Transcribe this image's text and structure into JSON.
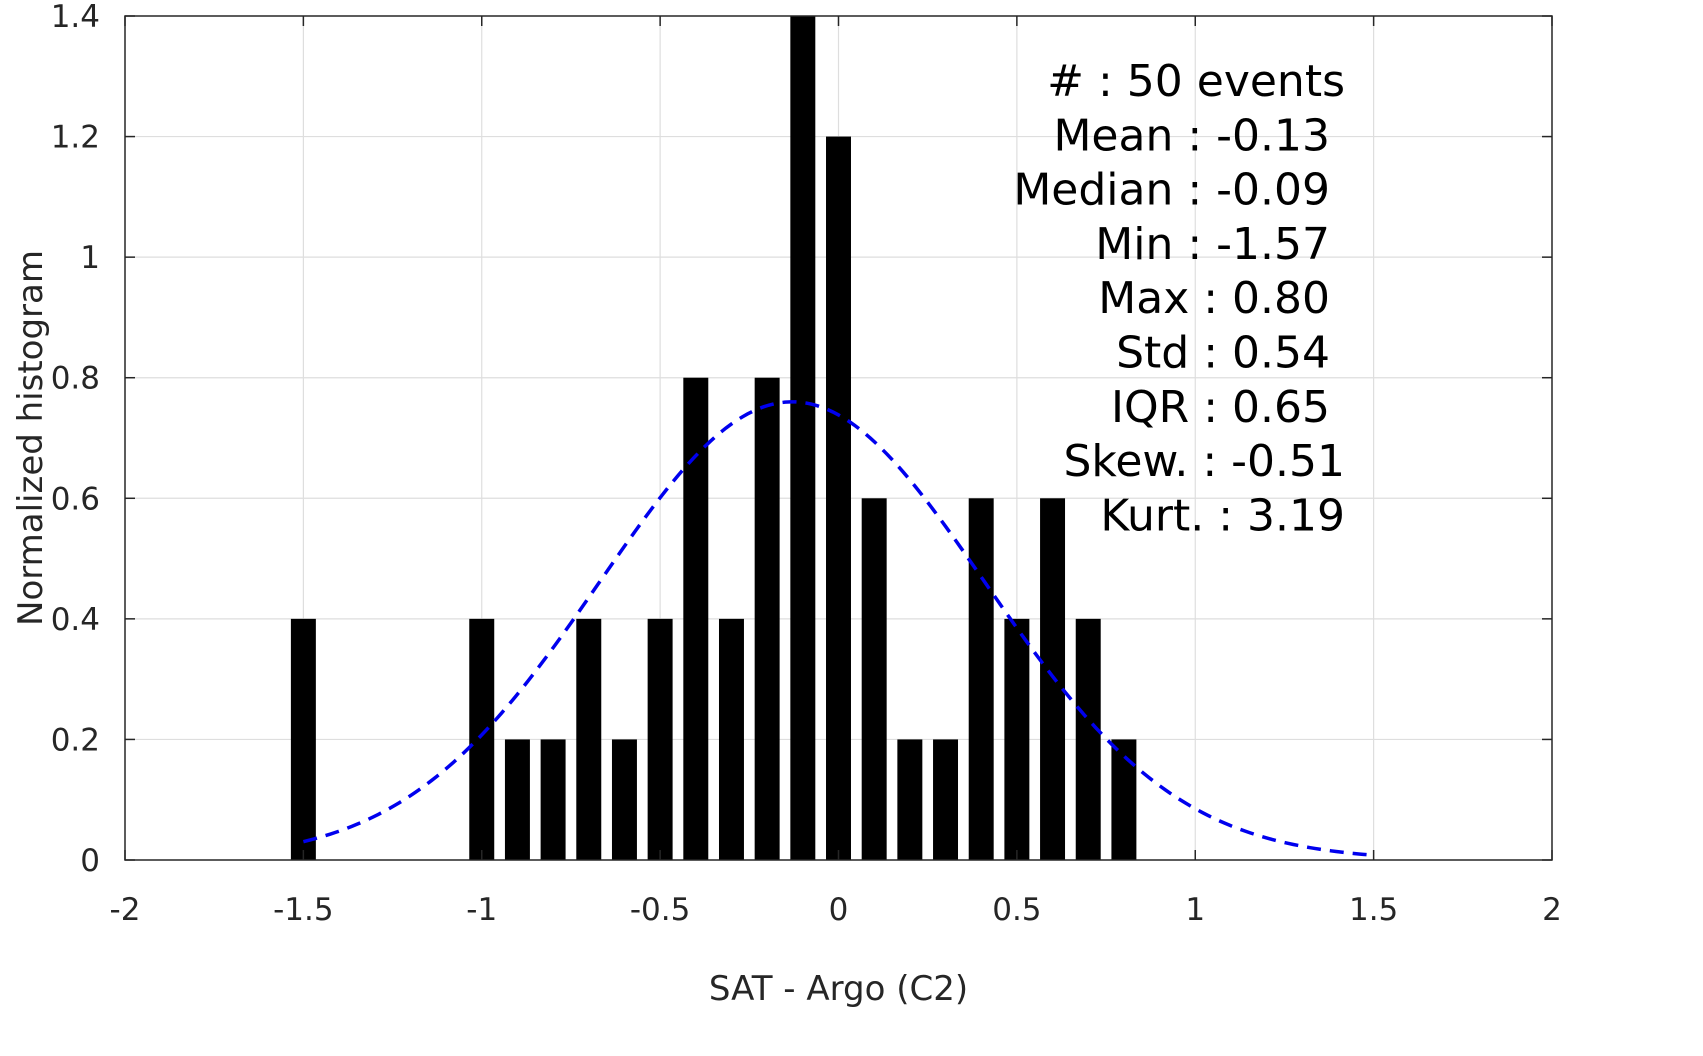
{
  "chart_data": {
    "type": "bar",
    "xlabel": "SAT - Argo (C2)",
    "ylabel": "Normalized histogram",
    "xlim": [
      -2,
      2
    ],
    "ylim": [
      0,
      1.4
    ],
    "xticks": [
      "-2",
      "-1.5",
      "-1",
      "-0.5",
      "0",
      "0.5",
      "1",
      "1.5",
      "2"
    ],
    "yticks": [
      "0",
      "0.2",
      "0.4",
      "0.6",
      "0.8",
      "1",
      "1.2",
      "1.4"
    ],
    "grid": true,
    "bin_width": 0.1,
    "bar_color": "#000000",
    "bars": [
      {
        "x": -1.5,
        "y": 0.4
      },
      {
        "x": -1.0,
        "y": 0.4
      },
      {
        "x": -0.9,
        "y": 0.2
      },
      {
        "x": -0.8,
        "y": 0.2
      },
      {
        "x": -0.7,
        "y": 0.4
      },
      {
        "x": -0.6,
        "y": 0.2
      },
      {
        "x": -0.5,
        "y": 0.4
      },
      {
        "x": -0.4,
        "y": 0.8
      },
      {
        "x": -0.3,
        "y": 0.4
      },
      {
        "x": -0.2,
        "y": 0.8
      },
      {
        "x": -0.1,
        "y": 1.4
      },
      {
        "x": 0.0,
        "y": 1.2
      },
      {
        "x": 0.1,
        "y": 0.6
      },
      {
        "x": 0.2,
        "y": 0.2
      },
      {
        "x": 0.3,
        "y": 0.2
      },
      {
        "x": 0.4,
        "y": 0.6
      },
      {
        "x": 0.5,
        "y": 0.4
      },
      {
        "x": 0.6,
        "y": 0.6
      },
      {
        "x": 0.7,
        "y": 0.4
      },
      {
        "x": 0.8,
        "y": 0.2
      }
    ],
    "fit_curve": {
      "style": "dashed",
      "color": "#0000ee",
      "mean": -0.13,
      "std": 0.54,
      "peak": 0.76,
      "x_range": [
        -1.5,
        1.5
      ]
    },
    "annotations": [
      "#  : 50 events",
      "Mean : -0.13",
      "Median : -0.09",
      "Min : -1.57",
      "Max : 0.80",
      "Std : 0.54",
      "IQR : 0.65",
      "Skew. : -0.51",
      "Kurt. : 3.19"
    ]
  }
}
